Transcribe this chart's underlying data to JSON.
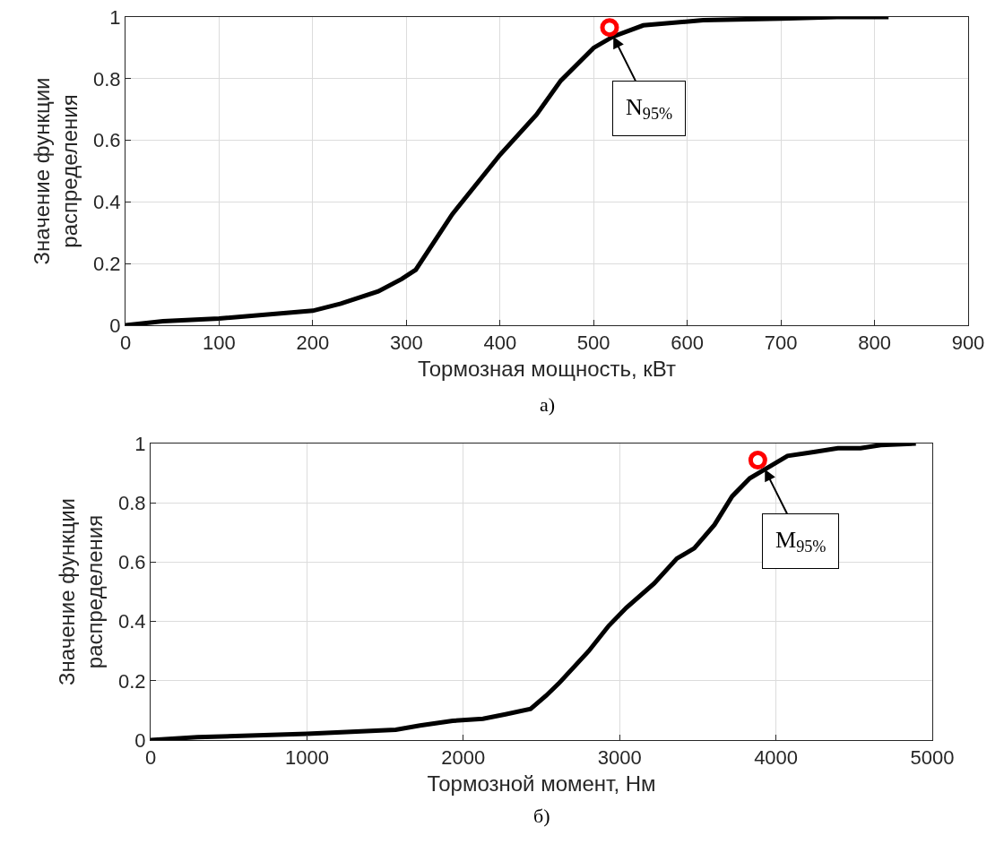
{
  "chart_data": [
    {
      "type": "line",
      "xlabel": "Тормозная мощность, кВт",
      "ylabel": "Значение функции\nраспределения",
      "xlim": [
        0,
        900
      ],
      "xticks": [
        0,
        100,
        200,
        300,
        400,
        500,
        600,
        700,
        800,
        900
      ],
      "ylim": [
        0,
        1
      ],
      "yticks": [
        0,
        0.2,
        0.4,
        0.6,
        0.8,
        1
      ],
      "grid": true,
      "line_style": "solid",
      "series": [
        {
          "color": "#000000",
          "x": [
            0,
            40,
            100,
            200,
            230,
            270,
            295,
            310,
            349,
            400,
            439,
            465,
            500,
            521,
            553,
            617,
            700,
            760,
            815
          ],
          "values": [
            0,
            0.013,
            0.022,
            0.047,
            0.07,
            0.11,
            0.15,
            0.18,
            0.36,
            0.553,
            0.683,
            0.794,
            0.9,
            0.937,
            0.973,
            0.99,
            0.995,
            1,
            1
          ]
        },
        {
          "type": "scatter",
          "marker": "circle",
          "color": "#ff0000",
          "x": [
            517
          ],
          "values": [
            0.966
          ]
        }
      ],
      "annotations": [
        {
          "text": "N$_{95%}$",
          "x": 521,
          "y": 0.937
        },
        "а)"
      ]
    },
    {
      "type": "line",
      "xlabel": "Тормозной момент, Нм",
      "ylabel": "Значение функции\nраспределения",
      "xlim": [
        0,
        5000
      ],
      "xticks": [
        0,
        1000,
        2000,
        3000,
        4000,
        5000
      ],
      "ylim": [
        0,
        1
      ],
      "yticks": [
        0,
        0.2,
        0.4,
        0.6,
        0.8,
        1
      ],
      "grid": true,
      "line_style": "solid",
      "series": [
        {
          "color": "#000000",
          "x": [
            0,
            300,
            1000,
            1568,
            1723,
            1932,
            2126,
            2270,
            2431,
            2528,
            2609,
            2802,
            2930,
            3043,
            3221,
            3366,
            3478,
            3607,
            3720,
            3833,
            3929,
            4074,
            4251,
            4396,
            4541,
            4670,
            4895
          ],
          "values": [
            0,
            0.01,
            0.021,
            0.035,
            0.049,
            0.065,
            0.072,
            0.087,
            0.105,
            0.149,
            0.19,
            0.3,
            0.385,
            0.446,
            0.528,
            0.612,
            0.647,
            0.726,
            0.822,
            0.883,
            0.913,
            0.958,
            0.972,
            0.984,
            0.984,
            0.995,
            1
          ]
        },
        {
          "type": "scatter",
          "marker": "circle",
          "color": "#ff0000",
          "x": [
            3884
          ],
          "values": [
            0.944
          ]
        }
      ],
      "annotations": [
        {
          "text": "M$_{95%}$",
          "x": 3929,
          "y": 0.913
        },
        "б)"
      ]
    }
  ]
}
